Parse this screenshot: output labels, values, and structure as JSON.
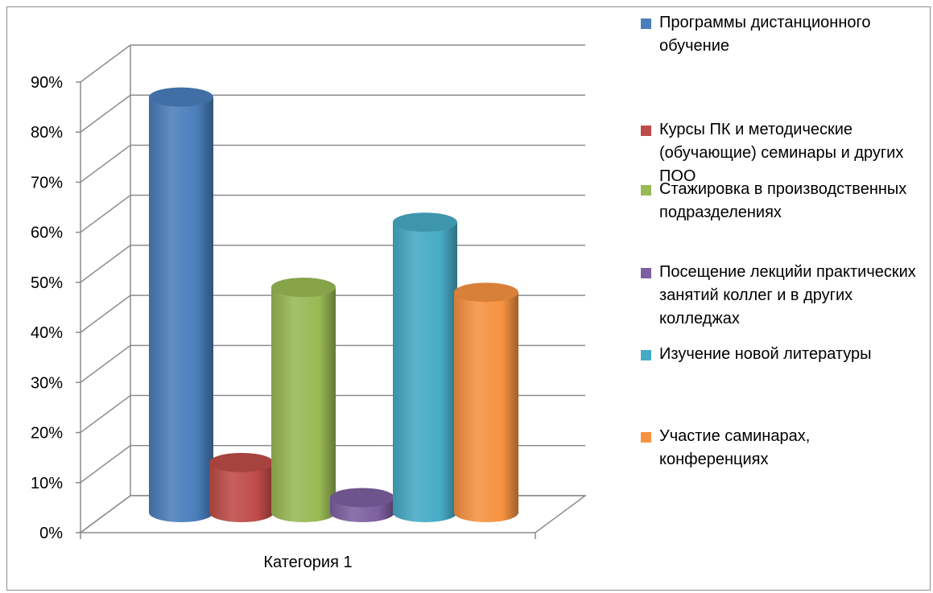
{
  "chart_data": {
    "type": "bar",
    "categories": [
      "Категория 1"
    ],
    "series": [
      {
        "name": "Программы дистанционного обучение",
        "values": [
          0.87
        ],
        "color": "#4a7ebb"
      },
      {
        "name": "Курсы ПК и методические (обучающие) семинары и других ПОО",
        "values": [
          0.14
        ],
        "color": "#be4b48"
      },
      {
        "name": "Стажировка в производственных подразделениях",
        "values": [
          0.49
        ],
        "color": "#98b954"
      },
      {
        "name": "Посещение лекцийи практических занятий коллег и в других колледжах",
        "values": [
          0.07
        ],
        "color": "#7d60a0"
      },
      {
        "name": "Изучение новой литературы",
        "values": [
          0.62
        ],
        "color": "#46aac5"
      },
      {
        "name": "Участие саминарах, конференциях",
        "values": [
          0.48
        ],
        "color": "#f69240"
      }
    ],
    "yticks": [
      "0%",
      "10%",
      "20%",
      "30%",
      "40%",
      "50%",
      "60%",
      "70%",
      "80%",
      "90%"
    ],
    "ylim": [
      0,
      1.0
    ],
    "grid": true,
    "legend_position": "right",
    "style": "3d-cylinder"
  }
}
